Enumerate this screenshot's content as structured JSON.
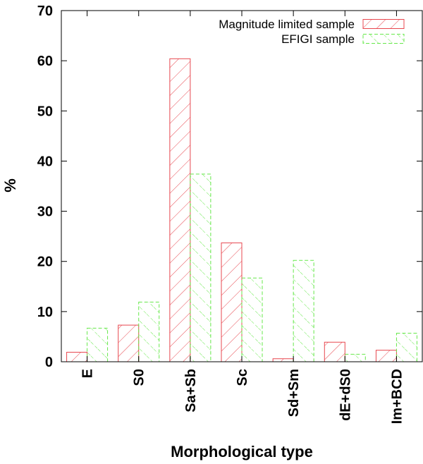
{
  "chart_data": {
    "type": "bar",
    "title": "",
    "xlabel": "Morphological type",
    "ylabel": "%",
    "ylim": [
      0,
      70
    ],
    "yticks": [
      0,
      10,
      20,
      30,
      40,
      50,
      60,
      70
    ],
    "categories": [
      "E",
      "S0",
      "Sa+Sb",
      "Sc",
      "Sd+Sm",
      "dE+dS0",
      "Im+BCD"
    ],
    "series": [
      {
        "name": "Magnitude limited sample",
        "color": "#e8474f",
        "pattern": "hatch-backslash",
        "values": [
          1.9,
          7.3,
          60.4,
          23.7,
          0.6,
          3.9,
          2.3
        ]
      },
      {
        "name": "EFIGI sample",
        "color": "#66e84a",
        "pattern": "hatch-dashed-slash",
        "values": [
          6.7,
          11.9,
          37.4,
          16.7,
          20.2,
          1.5,
          5.7
        ]
      }
    ],
    "legend_position": "top-right",
    "grid": false
  }
}
